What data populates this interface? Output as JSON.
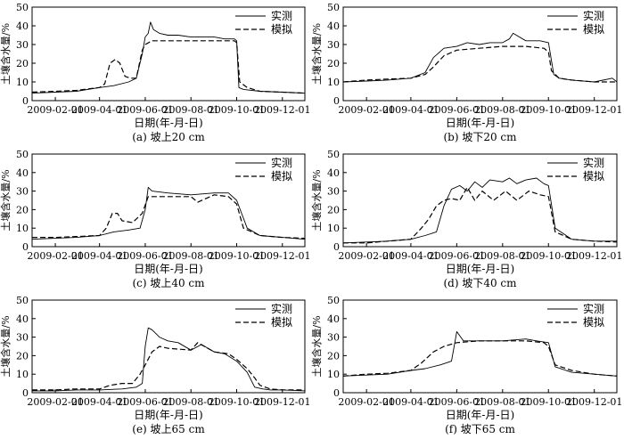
{
  "chart_data": [
    {
      "type": "line",
      "caption": "(a) 坡上20 cm",
      "xlabel": "日期(年-月-日)",
      "ylabel": "土壤含水量/%",
      "ylim": [
        0,
        50
      ],
      "yticks": [
        0,
        10,
        20,
        30,
        40,
        50
      ],
      "xlim": [
        "2009-01-01",
        "2009-12-31"
      ],
      "xticks": [
        "2009-02-01",
        "2009-04-01",
        "2009-06-01",
        "2009-08-01",
        "2009-10-01",
        "2009-12-01"
      ],
      "legend": "top-right",
      "series": [
        {
          "name": "实测",
          "style": "solid",
          "x": [
            "2009-01-01",
            "2009-02-01",
            "2009-03-01",
            "2009-04-01",
            "2009-04-20",
            "2009-05-10",
            "2009-05-20",
            "2009-05-28",
            "2009-06-01",
            "2009-06-05",
            "2009-06-08",
            "2009-06-12",
            "2009-06-20",
            "2009-07-01",
            "2009-07-15",
            "2009-08-01",
            "2009-08-15",
            "2009-09-01",
            "2009-09-15",
            "2009-09-28",
            "2009-10-01",
            "2009-10-04",
            "2009-10-10",
            "2009-11-01",
            "2009-12-01",
            "2009-12-31"
          ],
          "values": [
            4,
            4.5,
            5,
            7,
            8,
            10,
            12,
            25,
            34,
            36,
            42,
            38,
            36,
            35,
            35,
            34,
            34,
            34,
            33,
            33,
            32,
            7,
            6,
            5,
            4.5,
            4
          ]
        },
        {
          "name": "模拟",
          "style": "dashed",
          "x": [
            "2009-01-01",
            "2009-02-01",
            "2009-03-01",
            "2009-04-01",
            "2009-04-08",
            "2009-04-15",
            "2009-04-22",
            "2009-04-28",
            "2009-05-05",
            "2009-05-12",
            "2009-05-20",
            "2009-05-28",
            "2009-06-01",
            "2009-06-10",
            "2009-07-01",
            "2009-08-01",
            "2009-09-01",
            "2009-09-28",
            "2009-10-01",
            "2009-10-05",
            "2009-10-15",
            "2009-11-01",
            "2009-12-01",
            "2009-12-31"
          ],
          "values": [
            4.5,
            5,
            5.5,
            7,
            9,
            20,
            22,
            20,
            13,
            12,
            12,
            27,
            30,
            32,
            32,
            32,
            32,
            32,
            31,
            10,
            7,
            5,
            4.5,
            4
          ]
        }
      ]
    },
    {
      "type": "line",
      "caption": "(b) 坡下20 cm",
      "xlabel": "日期(年-月-日)",
      "ylabel": "土壤含水量/%",
      "ylim": [
        0,
        50
      ],
      "yticks": [
        0,
        10,
        20,
        30,
        40,
        50
      ],
      "xlim": [
        "2009-01-01",
        "2009-12-31"
      ],
      "xticks": [
        "2009-02-01",
        "2009-04-01",
        "2009-06-01",
        "2009-08-01",
        "2009-10-01",
        "2009-12-01"
      ],
      "legend": "top-right",
      "series": [
        {
          "name": "实测",
          "style": "solid",
          "x": [
            "2009-01-01",
            "2009-02-01",
            "2009-03-01",
            "2009-04-01",
            "2009-04-20",
            "2009-05-01",
            "2009-05-15",
            "2009-06-01",
            "2009-06-15",
            "2009-07-01",
            "2009-07-15",
            "2009-08-01",
            "2009-08-10",
            "2009-08-15",
            "2009-09-01",
            "2009-09-20",
            "2009-10-01",
            "2009-10-08",
            "2009-10-15",
            "2009-11-01",
            "2009-12-01",
            "2009-12-25",
            "2009-12-31"
          ],
          "values": [
            10,
            10.5,
            11,
            12,
            15,
            23,
            28,
            29,
            31,
            30,
            31,
            31,
            33,
            36,
            32,
            32,
            31,
            14,
            12,
            11,
            10,
            12,
            10
          ]
        },
        {
          "name": "模拟",
          "style": "dashed",
          "x": [
            "2009-01-01",
            "2009-02-01",
            "2009-03-01",
            "2009-04-01",
            "2009-04-20",
            "2009-05-01",
            "2009-05-15",
            "2009-06-01",
            "2009-07-01",
            "2009-08-01",
            "2009-09-01",
            "2009-09-25",
            "2009-10-01",
            "2009-10-05",
            "2009-10-15",
            "2009-11-01",
            "2009-12-01",
            "2009-12-31"
          ],
          "values": [
            10,
            11,
            11.5,
            12,
            14,
            18,
            24,
            27,
            28,
            29,
            29,
            28,
            26,
            16,
            12,
            11,
            10,
            10
          ]
        }
      ]
    },
    {
      "type": "line",
      "caption": "(c) 坡上40 cm",
      "xlabel": "日期(年-月-日)",
      "ylabel": "土壤含水量/%",
      "ylim": [
        0,
        50
      ],
      "yticks": [
        0,
        10,
        20,
        30,
        40,
        50
      ],
      "xlim": [
        "2009-01-01",
        "2009-12-31"
      ],
      "xticks": [
        "2009-02-01",
        "2009-04-01",
        "2009-06-01",
        "2009-08-01",
        "2009-10-01",
        "2009-12-01"
      ],
      "legend": "top-right",
      "series": [
        {
          "name": "实测",
          "style": "solid",
          "x": [
            "2009-01-01",
            "2009-02-01",
            "2009-03-01",
            "2009-04-01",
            "2009-04-20",
            "2009-05-10",
            "2009-05-25",
            "2009-06-01",
            "2009-06-05",
            "2009-06-10",
            "2009-07-01",
            "2009-08-01",
            "2009-09-01",
            "2009-09-20",
            "2009-10-01",
            "2009-10-15",
            "2009-11-01",
            "2009-12-01",
            "2009-12-31"
          ],
          "values": [
            4,
            4.5,
            5,
            6,
            8,
            9,
            10,
            20,
            32,
            30,
            29,
            28,
            29,
            29,
            25,
            10,
            6,
            5,
            4
          ]
        },
        {
          "name": "模拟",
          "style": "dashed",
          "x": [
            "2009-01-01",
            "2009-02-01",
            "2009-03-01",
            "2009-04-01",
            "2009-04-10",
            "2009-04-18",
            "2009-04-25",
            "2009-05-01",
            "2009-05-15",
            "2009-05-28",
            "2009-06-05",
            "2009-06-15",
            "2009-07-01",
            "2009-08-01",
            "2009-08-10",
            "2009-09-01",
            "2009-09-20",
            "2009-10-01",
            "2009-10-10",
            "2009-11-01",
            "2009-12-01",
            "2009-12-31"
          ],
          "values": [
            5,
            5,
            5.5,
            6,
            10,
            18,
            18,
            14,
            13,
            18,
            27,
            27,
            27,
            27,
            24,
            28,
            27,
            23,
            10,
            6,
            5,
            4.5
          ]
        }
      ]
    },
    {
      "type": "line",
      "caption": "(d) 坡下40 cm",
      "xlabel": "日期(年-月-日)",
      "ylabel": "土壤含水量/%",
      "ylim": [
        0,
        50
      ],
      "yticks": [
        0,
        10,
        20,
        30,
        40,
        50
      ],
      "xlim": [
        "2009-01-01",
        "2009-12-31"
      ],
      "xticks": [
        "2009-02-01",
        "2009-04-01",
        "2009-06-01",
        "2009-08-01",
        "2009-10-01",
        "2009-12-01"
      ],
      "legend": "top-right",
      "series": [
        {
          "name": "实测",
          "style": "solid",
          "x": [
            "2009-01-01",
            "2009-02-01",
            "2009-03-01",
            "2009-04-01",
            "2009-04-20",
            "2009-05-05",
            "2009-05-15",
            "2009-05-25",
            "2009-06-05",
            "2009-06-15",
            "2009-06-25",
            "2009-07-05",
            "2009-07-15",
            "2009-08-01",
            "2009-08-10",
            "2009-08-20",
            "2009-09-01",
            "2009-09-15",
            "2009-09-25",
            "2009-10-01",
            "2009-10-10",
            "2009-11-01",
            "2009-12-01",
            "2009-12-31"
          ],
          "values": [
            2,
            2.5,
            3,
            4,
            6,
            8,
            22,
            31,
            33,
            30,
            35,
            32,
            36,
            35,
            37,
            34,
            36,
            37,
            34,
            33,
            10,
            4,
            3,
            3
          ]
        },
        {
          "name": "模拟",
          "style": "dashed",
          "x": [
            "2009-01-01",
            "2009-02-01",
            "2009-03-01",
            "2009-04-01",
            "2009-04-15",
            "2009-04-25",
            "2009-05-05",
            "2009-05-15",
            "2009-05-25",
            "2009-06-05",
            "2009-06-15",
            "2009-06-25",
            "2009-07-05",
            "2009-07-20",
            "2009-08-05",
            "2009-08-20",
            "2009-09-05",
            "2009-09-20",
            "2009-10-01",
            "2009-10-10",
            "2009-11-01",
            "2009-12-01",
            "2009-12-31"
          ],
          "values": [
            2,
            2,
            3,
            4,
            10,
            15,
            22,
            25,
            26,
            25,
            32,
            25,
            30,
            25,
            30,
            25,
            30,
            28,
            27,
            8,
            4,
            3,
            2.5
          ]
        }
      ]
    },
    {
      "type": "line",
      "caption": "(e) 坡上65 cm",
      "xlabel": "日期(年-月-日)",
      "ylabel": "土壤含水量/%",
      "ylim": [
        0,
        50
      ],
      "yticks": [
        0,
        10,
        20,
        30,
        40,
        50
      ],
      "xlim": [
        "2009-01-01",
        "2009-12-31"
      ],
      "xticks": [
        "2009-02-01",
        "2009-04-01",
        "2009-06-01",
        "2009-08-01",
        "2009-10-01",
        "2009-12-01"
      ],
      "legend": "top-right",
      "series": [
        {
          "name": "实测",
          "style": "solid",
          "x": [
            "2009-01-01",
            "2009-02-01",
            "2009-03-01",
            "2009-04-01",
            "2009-05-01",
            "2009-05-20",
            "2009-05-28",
            "2009-06-01",
            "2009-06-05",
            "2009-06-10",
            "2009-06-20",
            "2009-07-01",
            "2009-07-15",
            "2009-08-01",
            "2009-08-15",
            "2009-09-01",
            "2009-09-15",
            "2009-10-01",
            "2009-10-15",
            "2009-10-25",
            "2009-11-05",
            "2009-11-15",
            "2009-12-01",
            "2009-12-31"
          ],
          "values": [
            1,
            1,
            1.5,
            1.5,
            2,
            3,
            5,
            25,
            35,
            34,
            30,
            28,
            27,
            23,
            26,
            22,
            21,
            17,
            11,
            3,
            2,
            1.5,
            1.5,
            1
          ]
        },
        {
          "name": "模拟",
          "style": "dashed",
          "x": [
            "2009-01-01",
            "2009-02-01",
            "2009-03-01",
            "2009-04-01",
            "2009-04-15",
            "2009-05-01",
            "2009-05-15",
            "2009-05-25",
            "2009-06-01",
            "2009-06-10",
            "2009-06-20",
            "2009-07-01",
            "2009-08-01",
            "2009-08-10",
            "2009-09-01",
            "2009-09-20",
            "2009-10-01",
            "2009-10-15",
            "2009-10-25",
            "2009-11-01",
            "2009-11-15",
            "2009-12-01",
            "2009-12-31"
          ],
          "values": [
            1.5,
            1.5,
            2,
            2,
            4,
            5,
            5,
            10,
            15,
            22,
            25,
            24,
            23,
            27,
            22,
            21,
            18,
            13,
            8,
            4,
            2,
            1.5,
            1.5
          ]
        }
      ]
    },
    {
      "type": "line",
      "caption": "(f) 坡下65 cm",
      "xlabel": "日期(年-月-日)",
      "ylabel": "土壤含水量/%",
      "ylim": [
        0,
        50
      ],
      "yticks": [
        0,
        10,
        20,
        30,
        40,
        50
      ],
      "xlim": [
        "2009-01-01",
        "2009-12-31"
      ],
      "xticks": [
        "2009-02-01",
        "2009-04-01",
        "2009-06-01",
        "2009-08-01",
        "2009-10-01",
        "2009-12-01"
      ],
      "legend": "top-right",
      "series": [
        {
          "name": "实测",
          "style": "solid",
          "x": [
            "2009-01-01",
            "2009-02-01",
            "2009-03-01",
            "2009-04-01",
            "2009-04-20",
            "2009-05-10",
            "2009-05-25",
            "2009-06-01",
            "2009-06-10",
            "2009-07-01",
            "2009-08-01",
            "2009-09-01",
            "2009-09-15",
            "2009-10-01",
            "2009-10-10",
            "2009-11-01",
            "2009-12-01",
            "2009-12-31"
          ],
          "values": [
            9,
            9.5,
            10,
            12,
            13,
            15,
            17,
            33,
            28,
            28,
            28,
            29,
            28,
            27,
            14,
            11,
            10,
            9
          ]
        },
        {
          "name": "模拟",
          "style": "dashed",
          "x": [
            "2009-01-01",
            "2009-02-01",
            "2009-03-01",
            "2009-04-01",
            "2009-04-15",
            "2009-05-01",
            "2009-05-15",
            "2009-06-01",
            "2009-07-01",
            "2009-08-01",
            "2009-09-01",
            "2009-09-25",
            "2009-10-01",
            "2009-10-10",
            "2009-11-01",
            "2009-12-01",
            "2009-12-31"
          ],
          "values": [
            9,
            10,
            10.5,
            12,
            16,
            22,
            25,
            27,
            28,
            28,
            28,
            27,
            25,
            15,
            12,
            10,
            9
          ]
        }
      ]
    }
  ]
}
